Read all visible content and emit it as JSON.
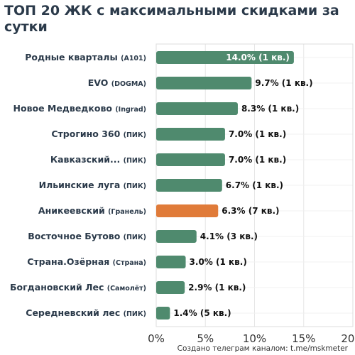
{
  "chart_data": {
    "type": "bar",
    "orientation": "horizontal",
    "title": "ТОП 20 ЖК с максимальными скидками за сутки",
    "categories": [
      {
        "name": "Родные кварталы",
        "developer": "(А101)"
      },
      {
        "name": "EVO",
        "developer": "(DOGMA)"
      },
      {
        "name": "Новое Медведково",
        "developer": "(Ingrad)"
      },
      {
        "name": "Строгино 360",
        "developer": "(ПИК)"
      },
      {
        "name": "Кавказский...",
        "developer": "(ПИК)"
      },
      {
        "name": "Ильинские луга",
        "developer": "(ПИК)"
      },
      {
        "name": "Аникеевский",
        "developer": "(Гранель)"
      },
      {
        "name": "Восточное Бутово",
        "developer": "(ПИК)"
      },
      {
        "name": "Страна.Озёрная",
        "developer": "(Страна)"
      },
      {
        "name": "Богдановский Лес",
        "developer": "(Самолёт)"
      },
      {
        "name": "Середневский лес",
        "developer": "(ПИК)"
      }
    ],
    "values": [
      14.0,
      9.7,
      8.3,
      7.0,
      7.0,
      6.7,
      6.3,
      4.1,
      3.0,
      2.9,
      1.4
    ],
    "data_labels": [
      "14.0% (1 кв.)",
      "9.7% (1 кв.)",
      "8.3% (1 кв.)",
      "7.0% (1 кв.)",
      "7.0% (1 кв.)",
      "6.7% (1 кв.)",
      "6.3% (7 кв.)",
      "4.1% (3 кв.)",
      "3.0% (1 кв.)",
      "2.9% (1 кв.)",
      "1.4% (5 кв.)"
    ],
    "highlight_index": 6,
    "xlim": [
      0,
      20
    ],
    "x_ticks": [
      0,
      5,
      10,
      15,
      20
    ],
    "x_tick_labels": [
      "0%",
      "5%",
      "10%",
      "15%",
      "20%"
    ],
    "xlabel": "",
    "ylabel": "",
    "grid": true,
    "colors": {
      "bar": "#4f8a6e",
      "highlight": "#e07b39",
      "label_dark": "#2b3a4a",
      "value_text": "#111111",
      "inside_text": "#ffffff",
      "grid": "#e6e6e6"
    }
  },
  "footer": "Создано телеграм каналом: t.me/mskmeter"
}
